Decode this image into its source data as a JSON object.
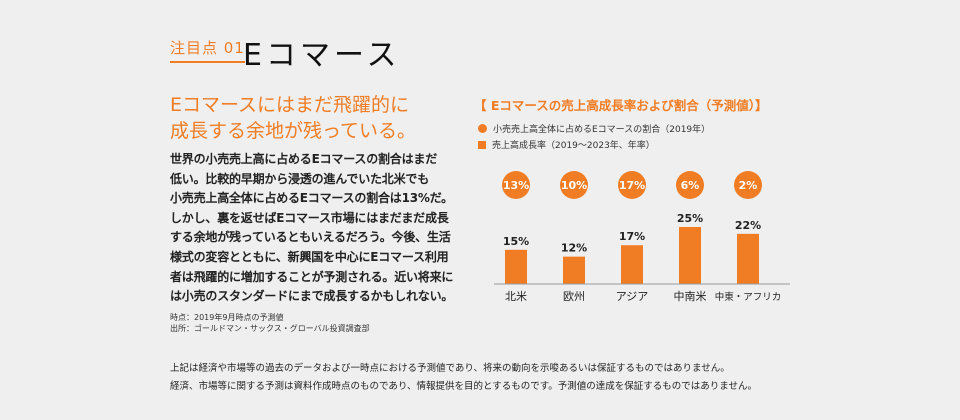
{
  "header": {
    "tag": "注目点 01",
    "title": "Eコマース"
  },
  "headline": [
    "Eコマースにはまだ飛躍的に",
    "成長する余地が残っている。"
  ],
  "body": [
    "世界の小売売上高に占めるEコマースの割合はまだ",
    "低い。比較的早期から浸透の進んでいた北米でも",
    "小売売上高全体に占めるEコマースの割合は13%だ。",
    "しかし、裏を返せばEコマース市場にはまだまだ成長",
    "する余地が残っているともいえるだろう。今後、生活",
    "様式の変容とともに、新興国を中心にEコマース利用",
    "者は飛躍的に増加することが予測される。近い将来に",
    "は小売のスタンダードにまで成長するかもしれない。"
  ],
  "notes": [
    "時点：2019年9月時点の予測値",
    "出所：ゴールドマン・サックス・グローバル投資調査部"
  ],
  "footer": [
    "上記は経済や市場等の過去のデータおよび一時点における予測値であり、将来の動向を示唆あるいは保証するものではありません。",
    "経済、市場等に関する予測は資料作成時点のものであり、情報提供を目的とするものです。予測値の達成を保証するものではありません。"
  ],
  "colors": {
    "accent": "#f07d24",
    "background": "#efefef"
  },
  "chart_data": {
    "type": "bar",
    "title": "【 Eコマースの売上高成長率および割合（予測値）】",
    "legend": [
      {
        "marker": "circle",
        "label": "小売売上高全体に占めるEコマースの割合（2019年）"
      },
      {
        "marker": "square",
        "label": "売上高成長率（2019～2023年、年率）"
      }
    ],
    "categories": [
      "北米",
      "欧州",
      "アジア",
      "中南米",
      "中東・アフリカ"
    ],
    "share_labels": [
      "13%",
      "10%",
      "17%",
      "6%",
      "2%"
    ],
    "growth_values": [
      15,
      12,
      17,
      25,
      22
    ],
    "growth_labels": [
      "15%",
      "12%",
      "17%",
      "25%",
      "22%"
    ],
    "ylim": [
      0,
      30
    ]
  }
}
